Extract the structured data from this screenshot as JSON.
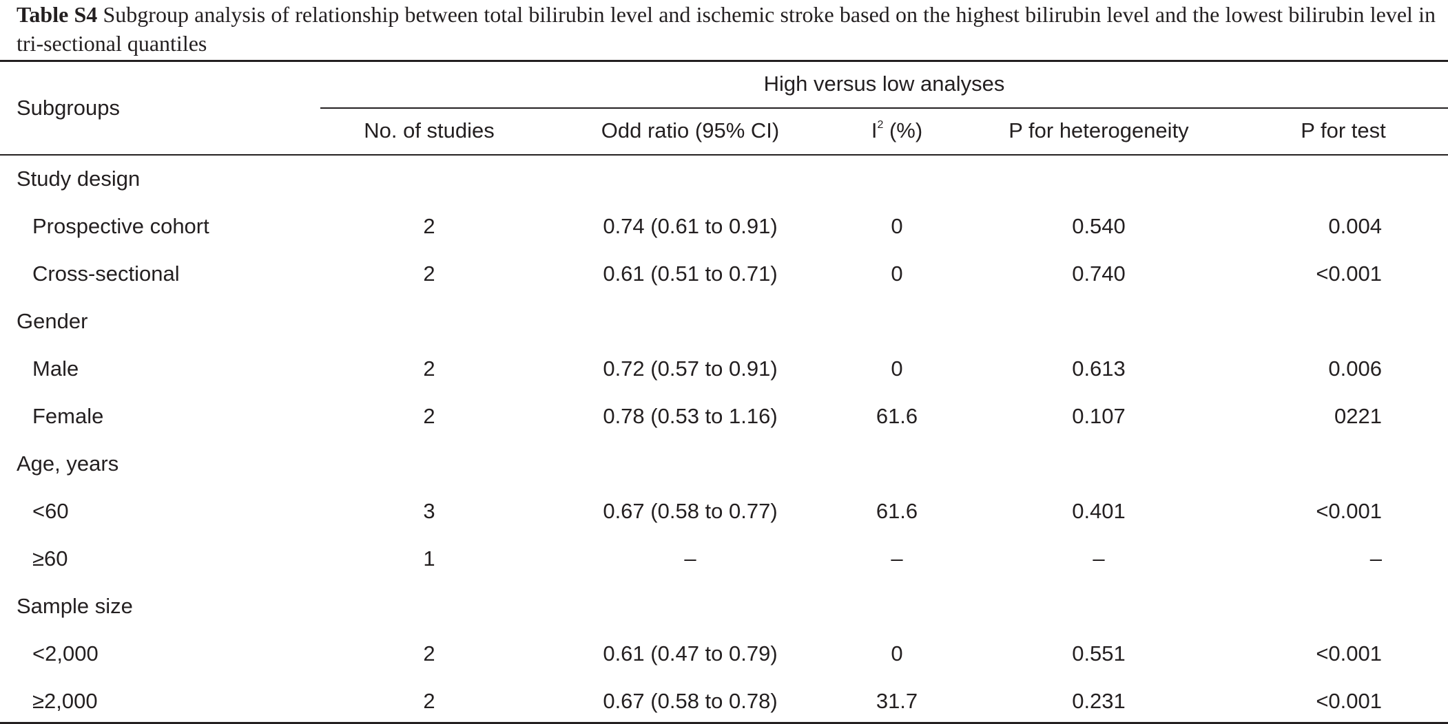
{
  "caption": {
    "label": "Table S4",
    "text": " Subgroup analysis of relationship between total bilirubin level and ischemic stroke based on the highest bilirubin level and the lowest bilirubin level in tri-sectional quantiles"
  },
  "header": {
    "subgroups": "Subgroups",
    "spanner": "High versus low analyses",
    "studies": "No. of studies",
    "odds_ratio": "Odd ratio (95% CI)",
    "i2_letter": "I",
    "i2_sup": "2",
    "i2_unit": " (%)",
    "p_het": "P for heterogeneity",
    "p_test": "P for test"
  },
  "rows": [
    {
      "type": "group",
      "label": "Study design"
    },
    {
      "type": "data",
      "label": "Prospective cohort",
      "studies": "2",
      "or": "0.74 (0.61 to 0.91)",
      "i2": "0",
      "p_het": "0.540",
      "p_test": "0.004"
    },
    {
      "type": "data",
      "label": "Cross-sectional",
      "studies": "2",
      "or": "0.61 (0.51 to 0.71)",
      "i2": "0",
      "p_het": "0.740",
      "p_test": "<0.001"
    },
    {
      "type": "group",
      "label": "Gender"
    },
    {
      "type": "data",
      "label": "Male",
      "studies": "2",
      "or": "0.72 (0.57 to 0.91)",
      "i2": "0",
      "p_het": "0.613",
      "p_test": "0.006"
    },
    {
      "type": "data",
      "label": "Female",
      "studies": "2",
      "or": "0.78 (0.53 to 1.16)",
      "i2": "61.6",
      "p_het": "0.107",
      "p_test": "0221"
    },
    {
      "type": "group",
      "label": "Age, years"
    },
    {
      "type": "data",
      "label": "<60",
      "studies": "3",
      "or": "0.67 (0.58 to 0.77)",
      "i2": "61.6",
      "p_het": "0.401",
      "p_test": "<0.001"
    },
    {
      "type": "data",
      "label": "≥60",
      "studies": "1",
      "or": "–",
      "i2": "–",
      "p_het": "–",
      "p_test": "–"
    },
    {
      "type": "group",
      "label": "Sample size"
    },
    {
      "type": "data",
      "label": "<2,000",
      "studies": "2",
      "or": "0.61 (0.47 to 0.79)",
      "i2": "0",
      "p_het": "0.551",
      "p_test": "<0.001"
    },
    {
      "type": "data",
      "label": "≥2,000",
      "studies": "2",
      "or": "0.67 (0.58 to 0.78)",
      "i2": "31.7",
      "p_het": "0.231",
      "p_test": "<0.001"
    }
  ]
}
